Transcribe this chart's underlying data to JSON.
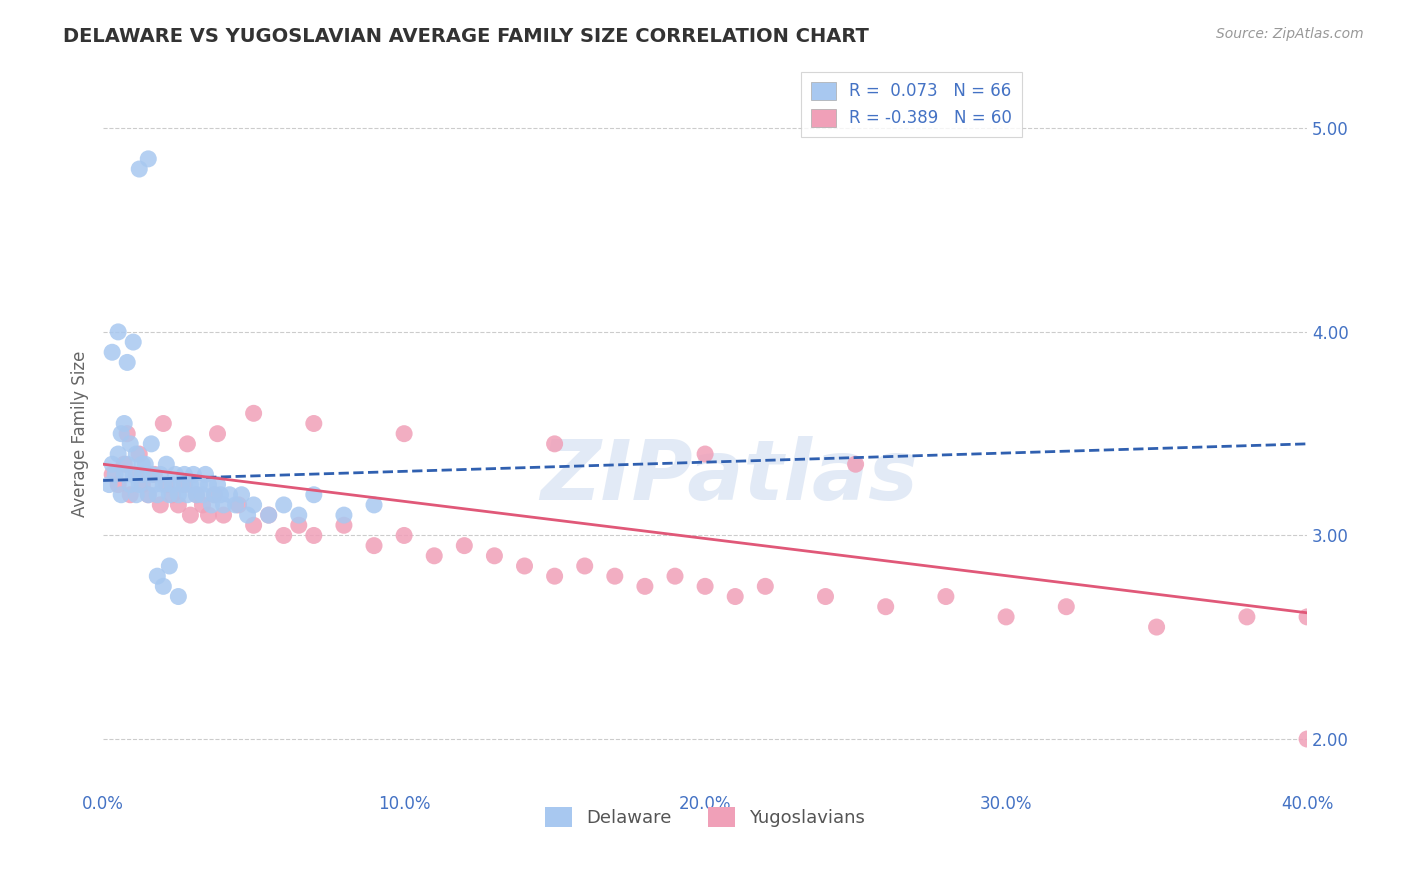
{
  "title": "DELAWARE VS YUGOSLAVIAN AVERAGE FAMILY SIZE CORRELATION CHART",
  "source_text": "Source: ZipAtlas.com",
  "ylabel": "Average Family Size",
  "xlim": [
    0.0,
    0.4
  ],
  "ylim": [
    1.75,
    5.25
  ],
  "yticks": [
    2.0,
    3.0,
    4.0,
    5.0
  ],
  "xticks": [
    0.0,
    0.1,
    0.2,
    0.3,
    0.4
  ],
  "xtick_labels": [
    "0.0%",
    "10.0%",
    "20.0%",
    "30.0%",
    "40.0%"
  ],
  "delaware_color": "#a8c8f0",
  "yugoslavian_color": "#f0a0b8",
  "delaware_line_color": "#3060b0",
  "yugoslavian_line_color": "#e05878",
  "legend_label1": "R =  0.073   N = 66",
  "legend_label2": "R = -0.389   N = 60",
  "label1": "Delaware",
  "label2": "Yugoslavians",
  "watermark": "ZIPatlas",
  "background_color": "#ffffff",
  "grid_color": "#cccccc",
  "title_color": "#333333",
  "tick_color": "#4472c4",
  "delaware_scatter_x": [
    0.002,
    0.003,
    0.004,
    0.005,
    0.006,
    0.007,
    0.008,
    0.009,
    0.01,
    0.011,
    0.012,
    0.013,
    0.014,
    0.015,
    0.016,
    0.017,
    0.018,
    0.019,
    0.02,
    0.021,
    0.022,
    0.023,
    0.024,
    0.025,
    0.026,
    0.027,
    0.028,
    0.029,
    0.03,
    0.031,
    0.032,
    0.033,
    0.034,
    0.035,
    0.036,
    0.037,
    0.038,
    0.039,
    0.04,
    0.042,
    0.044,
    0.046,
    0.048,
    0.05,
    0.055,
    0.06,
    0.065,
    0.07,
    0.08,
    0.09,
    0.003,
    0.005,
    0.008,
    0.01,
    0.012,
    0.015,
    0.018,
    0.02,
    0.022,
    0.025,
    0.006,
    0.007,
    0.009,
    0.011,
    0.013,
    0.016
  ],
  "delaware_scatter_y": [
    3.25,
    3.35,
    3.3,
    3.4,
    3.2,
    3.3,
    3.35,
    3.25,
    3.3,
    3.2,
    3.25,
    3.3,
    3.35,
    3.2,
    3.3,
    3.25,
    3.2,
    3.3,
    3.25,
    3.35,
    3.2,
    3.25,
    3.3,
    3.2,
    3.25,
    3.3,
    3.2,
    3.25,
    3.3,
    3.2,
    3.25,
    3.2,
    3.3,
    3.25,
    3.15,
    3.2,
    3.25,
    3.2,
    3.15,
    3.2,
    3.15,
    3.2,
    3.1,
    3.15,
    3.1,
    3.15,
    3.1,
    3.2,
    3.1,
    3.15,
    3.9,
    4.0,
    3.85,
    3.95,
    4.8,
    4.85,
    2.8,
    2.75,
    2.85,
    2.7,
    3.5,
    3.55,
    3.45,
    3.4,
    3.35,
    3.45
  ],
  "yugoslavian_scatter_x": [
    0.003,
    0.005,
    0.007,
    0.009,
    0.011,
    0.013,
    0.015,
    0.017,
    0.019,
    0.021,
    0.023,
    0.025,
    0.027,
    0.029,
    0.031,
    0.033,
    0.035,
    0.037,
    0.04,
    0.045,
    0.05,
    0.055,
    0.06,
    0.065,
    0.07,
    0.08,
    0.09,
    0.1,
    0.11,
    0.12,
    0.13,
    0.14,
    0.15,
    0.16,
    0.17,
    0.18,
    0.19,
    0.2,
    0.21,
    0.22,
    0.24,
    0.26,
    0.28,
    0.3,
    0.32,
    0.35,
    0.38,
    0.4,
    0.008,
    0.012,
    0.02,
    0.028,
    0.038,
    0.05,
    0.07,
    0.1,
    0.15,
    0.2,
    0.25,
    0.4
  ],
  "yugoslavian_scatter_y": [
    3.3,
    3.25,
    3.35,
    3.2,
    3.3,
    3.25,
    3.2,
    3.3,
    3.15,
    3.25,
    3.2,
    3.15,
    3.25,
    3.1,
    3.2,
    3.15,
    3.1,
    3.2,
    3.1,
    3.15,
    3.05,
    3.1,
    3.0,
    3.05,
    3.0,
    3.05,
    2.95,
    3.0,
    2.9,
    2.95,
    2.9,
    2.85,
    2.8,
    2.85,
    2.8,
    2.75,
    2.8,
    2.75,
    2.7,
    2.75,
    2.7,
    2.65,
    2.7,
    2.6,
    2.65,
    2.55,
    2.6,
    2.6,
    3.5,
    3.4,
    3.55,
    3.45,
    3.5,
    3.6,
    3.55,
    3.5,
    3.45,
    3.4,
    3.35,
    2.0
  ]
}
